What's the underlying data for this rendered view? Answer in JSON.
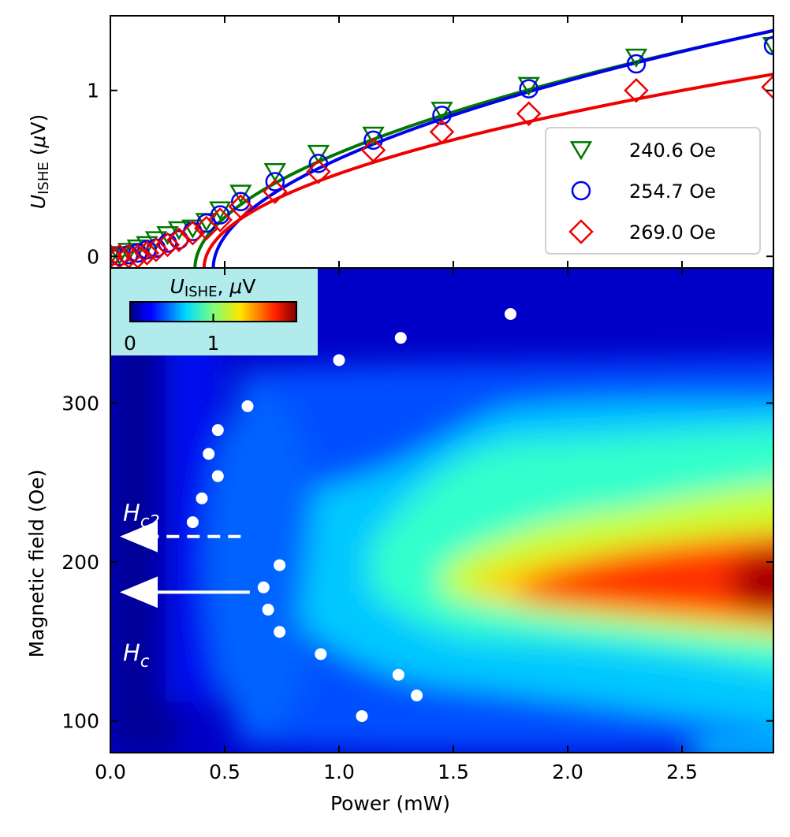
{
  "chart_data": [
    {
      "type": "scatter",
      "panel": "top",
      "ylabel_main": "U",
      "ylabel_sub": "ISHE",
      "ylabel_unit_pre": " (",
      "ylabel_unit_mu": "μ",
      "ylabel_unit_post": "V)",
      "xlim": [
        0,
        2.9
      ],
      "ylim": [
        -0.07,
        1.45
      ],
      "yticks": [
        0,
        1
      ],
      "ytick_labels": [
        "0",
        "1"
      ],
      "legend_position": "lower right",
      "series": [
        {
          "name": "240.6 Oe",
          "color": "#007700",
          "marker": "triangle-down",
          "x": [
            0.0,
            0.04,
            0.08,
            0.12,
            0.16,
            0.2,
            0.25,
            0.3,
            0.36,
            0.42,
            0.48,
            0.57,
            0.72,
            0.91,
            1.15,
            1.45,
            1.83,
            2.3,
            2.9
          ],
          "y": [
            0.0,
            0.01,
            0.03,
            0.05,
            0.07,
            0.1,
            0.13,
            0.16,
            0.17,
            0.21,
            0.28,
            0.38,
            0.51,
            0.62,
            0.73,
            0.88,
            1.03,
            1.2,
            1.27
          ],
          "fit_x0": 0.37,
          "fit_a": 0.882,
          "fit_p": 0.52
        },
        {
          "name": "254.7 Oe",
          "color": "#0000ee",
          "marker": "circle",
          "x": [
            0.0,
            0.04,
            0.08,
            0.12,
            0.16,
            0.2,
            0.25,
            0.3,
            0.36,
            0.42,
            0.48,
            0.57,
            0.72,
            0.91,
            1.15,
            1.45,
            1.83,
            2.3,
            2.9
          ],
          "y": [
            0.0,
            0.0,
            0.01,
            0.02,
            0.04,
            0.05,
            0.08,
            0.1,
            0.15,
            0.2,
            0.25,
            0.33,
            0.45,
            0.56,
            0.7,
            0.85,
            1.01,
            1.16,
            1.27
          ],
          "fit_x0": 0.45,
          "fit_a": 0.898,
          "fit_p": 0.52
        },
        {
          "name": "269.0 Oe",
          "color": "#ee0000",
          "marker": "diamond",
          "x": [
            0.0,
            0.04,
            0.08,
            0.12,
            0.16,
            0.2,
            0.25,
            0.3,
            0.36,
            0.42,
            0.48,
            0.57,
            0.72,
            0.91,
            1.15,
            1.45,
            1.83,
            2.3,
            2.9
          ],
          "y": [
            0.0,
            0.0,
            0.0,
            0.0,
            0.02,
            0.04,
            0.07,
            0.1,
            0.14,
            0.17,
            0.22,
            0.3,
            0.39,
            0.51,
            0.64,
            0.75,
            0.86,
            1.0,
            1.02
          ],
          "fit_x0": 0.41,
          "fit_a": 0.74,
          "fit_p": 0.5
        }
      ]
    },
    {
      "type": "heatmap",
      "panel": "bottom",
      "xlabel": "Power (mW)",
      "ylabel": "Magnetic field (Oe)",
      "xlim": [
        0,
        2.9
      ],
      "ylim": [
        80,
        385
      ],
      "xticks": [
        0,
        0.5,
        1,
        1.5,
        2,
        2.5
      ],
      "xtick_labels": [
        "0.0",
        "0.5",
        "1.0",
        "1.5",
        "2.0",
        "2.5"
      ],
      "yticks": [
        100,
        200,
        300
      ],
      "ytick_labels": [
        "100",
        "200",
        "300"
      ],
      "colormap": "jet",
      "colorbar": {
        "label_main": "U",
        "label_sub": "ISHE",
        "label_sep": ", ",
        "label_mu": "μ",
        "label_unit": "V",
        "range": [
          0,
          2
        ],
        "ticks": [
          0,
          1
        ],
        "tick_labels": [
          "0",
          "1"
        ]
      },
      "resonance_points": {
        "color": "#ffffff",
        "x": [
          1.75,
          1.27,
          1.0,
          0.6,
          0.47,
          0.43,
          0.47,
          0.4,
          0.36,
          0.74,
          0.67,
          0.69,
          0.74,
          0.92,
          1.26,
          1.34,
          1.1
        ],
        "y": [
          356,
          341,
          327,
          298,
          283,
          268,
          254,
          240,
          225,
          198,
          184,
          170,
          156,
          142,
          129,
          116,
          103
        ]
      },
      "annotations": [
        {
          "id": "hc2",
          "main": "H",
          "sub": "c2",
          "arrow_style": "dashed",
          "arrow_y": 216,
          "arrow_x_start": 0.57,
          "arrow_x_end": 0.0,
          "text_y": 231
        },
        {
          "id": "hc",
          "main": "H",
          "sub": "c",
          "arrow_style": "solid",
          "arrow_y": 181,
          "arrow_x_start": 0.61,
          "arrow_x_end": 0.0,
          "text_y": 143
        }
      ]
    }
  ]
}
